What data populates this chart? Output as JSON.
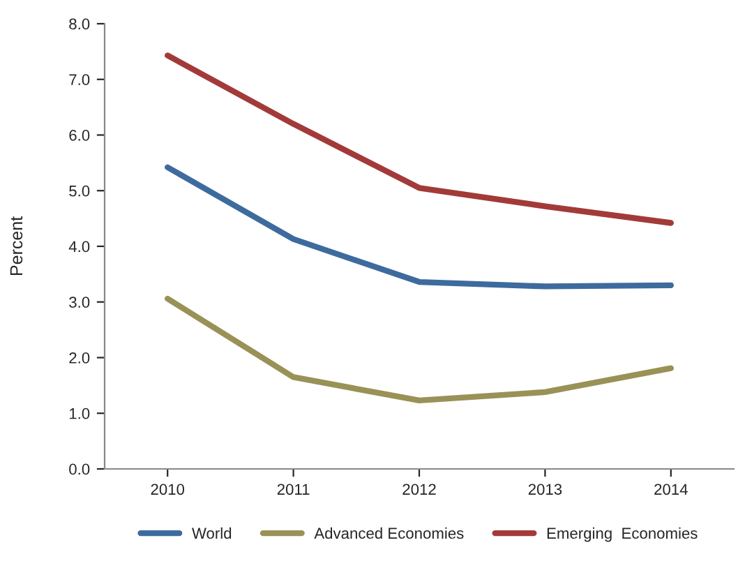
{
  "chart_data": {
    "type": "line",
    "ylabel": "Percent",
    "categories": [
      "2010",
      "2011",
      "2012",
      "2013",
      "2014"
    ],
    "series": [
      {
        "name": "World",
        "color": "#3e6b9e",
        "values": [
          5.42,
          4.13,
          3.36,
          3.28,
          3.3
        ]
      },
      {
        "name": "Advanced Economies",
        "color": "#9a9157",
        "values": [
          3.06,
          1.65,
          1.23,
          1.38,
          1.81
        ]
      },
      {
        "name": "Emerging  Economies",
        "color": "#a33a3a",
        "values": [
          7.43,
          6.2,
          5.05,
          4.72,
          4.42
        ]
      }
    ],
    "ylim": [
      0,
      8
    ],
    "yticks": [
      {
        "value": 0,
        "label": "0.0"
      },
      {
        "value": 1,
        "label": "1.0"
      },
      {
        "value": 2,
        "label": "2.0"
      },
      {
        "value": 3,
        "label": "3.0"
      },
      {
        "value": 4,
        "label": "4.0"
      },
      {
        "value": 5,
        "label": "5.0"
      },
      {
        "value": 6,
        "label": "6.0"
      },
      {
        "value": 7,
        "label": "7.0"
      },
      {
        "value": 8,
        "label": "8.0"
      }
    ],
    "grid": false,
    "legend": "bottom",
    "marker": "none",
    "line_style": "solid"
  }
}
